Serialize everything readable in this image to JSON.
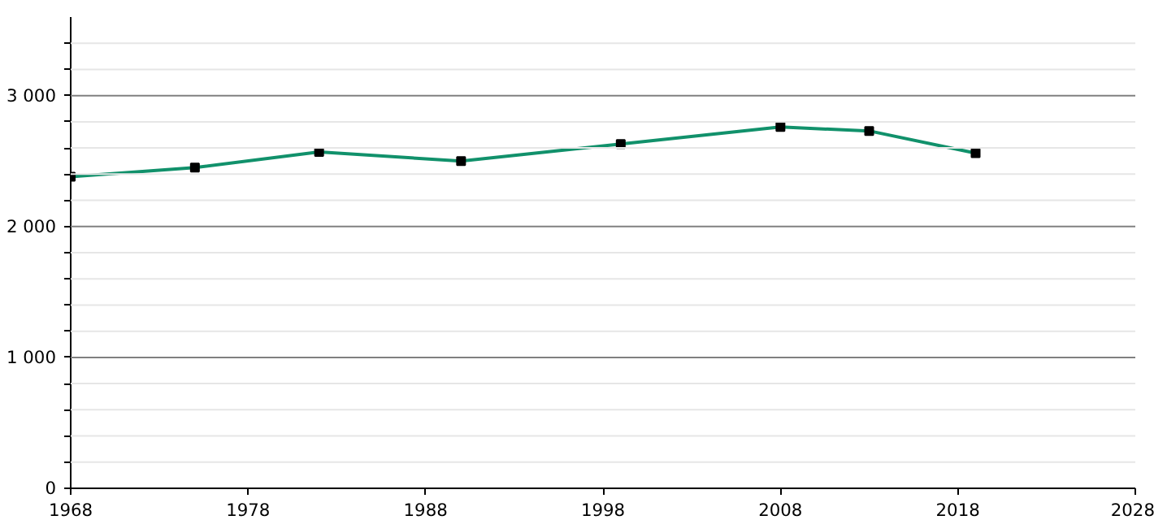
{
  "chart_data": {
    "type": "line",
    "x": [
      1968,
      1975,
      1982,
      1990,
      1999,
      2008,
      2013,
      2019
    ],
    "series": [
      {
        "color": "#11916b",
        "values": [
          2380,
          2450,
          2570,
          2500,
          2630,
          2760,
          2730,
          2560
        ]
      }
    ],
    "xlim": [
      1968,
      2028
    ],
    "xticks": [
      1968,
      1978,
      1988,
      1998,
      2008,
      2018,
      2028
    ],
    "ylim": [
      0,
      3600
    ],
    "yticks": [
      {
        "value": 0,
        "label": "0"
      },
      {
        "value": 200,
        "label": null
      },
      {
        "value": 400,
        "label": null
      },
      {
        "value": 600,
        "label": null
      },
      {
        "value": 800,
        "label": null
      },
      {
        "value": 1000,
        "label": "1 000"
      },
      {
        "value": 1200,
        "label": null
      },
      {
        "value": 1400,
        "label": null
      },
      {
        "value": 1600,
        "label": null
      },
      {
        "value": 1800,
        "label": null
      },
      {
        "value": 2000,
        "label": "2 000"
      },
      {
        "value": 2200,
        "label": null
      },
      {
        "value": 2400,
        "label": null
      },
      {
        "value": 2600,
        "label": null
      },
      {
        "value": 2800,
        "label": null
      },
      {
        "value": 3000,
        "label": "3 000"
      },
      {
        "value": 3200,
        "label": null
      },
      {
        "value": 3400,
        "label": null
      }
    ],
    "grid": "y",
    "marker": "square",
    "line_style": "solid"
  }
}
